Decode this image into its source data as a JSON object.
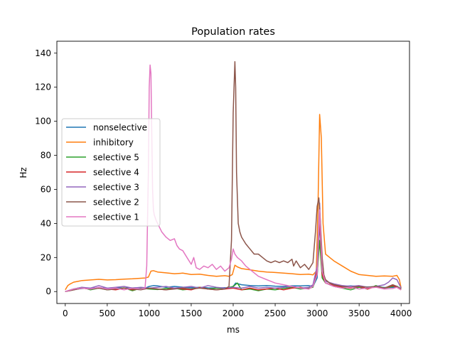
{
  "chart_data": {
    "type": "line",
    "title": "Population rates",
    "xlabel": "ms",
    "ylabel": "Hz",
    "xlim": [
      -100,
      4100
    ],
    "ylim": [
      -7,
      147
    ],
    "xticks": [
      0,
      500,
      1000,
      1500,
      2000,
      2500,
      3000,
      3500,
      4000
    ],
    "yticks": [
      0,
      20,
      40,
      60,
      80,
      100,
      120,
      140
    ],
    "grid": false,
    "legend_position": "center-left",
    "series": [
      {
        "name": "nonselective",
        "color": "#1f77b4",
        "x": [
          0,
          50,
          100,
          150,
          200,
          300,
          400,
          500,
          600,
          700,
          800,
          900,
          950,
          1000,
          1050,
          1100,
          1200,
          1300,
          1400,
          1500,
          1600,
          1700,
          1800,
          1900,
          1950,
          2000,
          2030,
          2060,
          2100,
          2200,
          2300,
          2400,
          2500,
          2600,
          2700,
          2800,
          2900,
          2950,
          3000,
          3030,
          3060,
          3100,
          3200,
          3300,
          3400,
          3500,
          3600,
          3700,
          3800,
          3900,
          3950,
          4000
        ],
        "y": [
          0,
          0.5,
          1.0,
          1.5,
          1.8,
          2.0,
          2.2,
          2.0,
          2.3,
          2.1,
          2.2,
          2.3,
          2.0,
          3.0,
          3.5,
          3.3,
          2.5,
          3.0,
          2.6,
          2.3,
          2.5,
          2.2,
          2.0,
          2.3,
          2.0,
          3.0,
          5.0,
          4.5,
          4.0,
          3.5,
          3.3,
          3.5,
          3.2,
          3.0,
          3.4,
          3.3,
          3.5,
          3.0,
          8,
          40,
          12,
          5,
          3.5,
          3.0,
          3.3,
          3.0,
          2.7,
          2.9,
          2.4,
          2.5,
          2.6,
          1.5
        ]
      },
      {
        "name": "inhibitory",
        "color": "#ff7f0e",
        "x": [
          0,
          30,
          60,
          100,
          150,
          200,
          300,
          400,
          500,
          600,
          700,
          800,
          900,
          950,
          990,
          1020,
          1050,
          1100,
          1200,
          1300,
          1400,
          1500,
          1600,
          1700,
          1800,
          1900,
          1950,
          1990,
          2020,
          2050,
          2100,
          2200,
          2300,
          2400,
          2500,
          2600,
          2700,
          2800,
          2900,
          2950,
          2990,
          3010,
          3030,
          3050,
          3070,
          3100,
          3150,
          3200,
          3300,
          3400,
          3500,
          3600,
          3700,
          3800,
          3900,
          3950,
          3980,
          4000
        ],
        "y": [
          1,
          3.5,
          4.5,
          5.5,
          6.0,
          6.5,
          6.8,
          7.2,
          6.8,
          7.0,
          7.3,
          7.5,
          7.8,
          8.0,
          8.5,
          12.0,
          12.3,
          11.5,
          11.0,
          10.5,
          10.8,
          10.0,
          10.2,
          9.5,
          9.0,
          9.3,
          9.0,
          10,
          15.5,
          14.5,
          13.5,
          12.8,
          12.0,
          11.5,
          11.2,
          10.8,
          10.5,
          10.0,
          10.2,
          9.8,
          12,
          50,
          104,
          90,
          40,
          22,
          20,
          18,
          15,
          12,
          10,
          9.5,
          9.0,
          9.2,
          9.0,
          9.5,
          7,
          2
        ]
      },
      {
        "name": "selective 5",
        "color": "#2ca02c",
        "x": [
          0,
          100,
          200,
          300,
          400,
          500,
          600,
          700,
          800,
          900,
          1000,
          1100,
          1200,
          1300,
          1400,
          1500,
          1600,
          1700,
          1800,
          1900,
          2000,
          2050,
          2100,
          2200,
          2300,
          2400,
          2500,
          2600,
          2700,
          2800,
          2900,
          2950,
          3000,
          3030,
          3060,
          3100,
          3200,
          3300,
          3400,
          3500,
          3600,
          3700,
          3800,
          3900,
          3950,
          4000
        ],
        "y": [
          0,
          1.5,
          2.5,
          1.0,
          2.0,
          1.0,
          1.5,
          2.2,
          0.5,
          2.0,
          1.5,
          1.2,
          1.8,
          2.0,
          1.0,
          1.5,
          2.5,
          1.5,
          2.0,
          1.8,
          3.0,
          5.0,
          1.0,
          1.5,
          0.5,
          1.5,
          1.0,
          1.8,
          2.5,
          1.5,
          2.0,
          2.5,
          10,
          30,
          8,
          5,
          3.0,
          2.0,
          1.0,
          2.5,
          1.5,
          3.5,
          2.0,
          3.0,
          3.2,
          1.5
        ]
      },
      {
        "name": "selective 4",
        "color": "#d62728",
        "x": [
          0,
          100,
          200,
          300,
          400,
          500,
          600,
          700,
          800,
          900,
          1000,
          1100,
          1200,
          1300,
          1400,
          1500,
          1600,
          1700,
          1800,
          1900,
          2000,
          2100,
          2200,
          2300,
          2400,
          2500,
          2600,
          2700,
          2800,
          2900,
          2950,
          3000,
          3030,
          3060,
          3100,
          3200,
          3300,
          3400,
          3500,
          3600,
          3700,
          3800,
          3900,
          3950,
          4000
        ],
        "y": [
          0,
          1.0,
          2.0,
          1.5,
          2.0,
          1.5,
          1.0,
          2.0,
          1.0,
          1.5,
          2.0,
          1.5,
          1.0,
          2.0,
          1.5,
          1.0,
          2.5,
          1.5,
          1.0,
          1.5,
          2.0,
          1.0,
          2.0,
          1.0,
          1.5,
          2.0,
          1.0,
          2.0,
          2.5,
          1.5,
          3.0,
          12,
          43,
          10,
          5,
          3.5,
          2.5,
          2.0,
          3.0,
          1.5,
          3.0,
          2.0,
          3.5,
          2.5,
          1.0
        ]
      },
      {
        "name": "selective 3",
        "color": "#9467bd",
        "x": [
          0,
          100,
          200,
          300,
          400,
          500,
          600,
          700,
          800,
          900,
          1000,
          1100,
          1200,
          1300,
          1400,
          1500,
          1600,
          1700,
          1800,
          1900,
          2000,
          2100,
          2200,
          2300,
          2400,
          2500,
          2600,
          2700,
          2800,
          2900,
          2950,
          3000,
          3030,
          3060,
          3100,
          3200,
          3300,
          3400,
          3500,
          3600,
          3700,
          3800,
          3850,
          3900,
          3950,
          4000
        ],
        "y": [
          0,
          1.5,
          2.5,
          2.0,
          3.5,
          2.0,
          2.5,
          3.0,
          2.0,
          2.5,
          2.0,
          2.5,
          3.0,
          2.0,
          2.5,
          3.0,
          2.0,
          3.5,
          2.5,
          2.0,
          2.5,
          2.0,
          3.0,
          2.0,
          2.5,
          2.0,
          2.5,
          3.0,
          2.0,
          2.5,
          4.0,
          15,
          52,
          12,
          6,
          4.5,
          3.5,
          3.0,
          3.5,
          2.5,
          3.0,
          4.0,
          5.5,
          8.0,
          7.0,
          2.0
        ]
      },
      {
        "name": "selective 2",
        "color": "#8c564b",
        "x": [
          0,
          100,
          200,
          300,
          400,
          500,
          600,
          700,
          800,
          900,
          1000,
          1100,
          1200,
          1300,
          1400,
          1500,
          1600,
          1700,
          1800,
          1900,
          1950,
          1980,
          2000,
          2020,
          2030,
          2040,
          2060,
          2080,
          2100,
          2150,
          2200,
          2250,
          2300,
          2350,
          2400,
          2450,
          2500,
          2550,
          2600,
          2650,
          2700,
          2720,
          2750,
          2800,
          2850,
          2900,
          2950,
          2980,
          3000,
          3020,
          3040,
          3060,
          3080,
          3100,
          3150,
          3200,
          3300,
          3400,
          3500,
          3600,
          3700,
          3800,
          3900,
          3950,
          4000
        ],
        "y": [
          0,
          1.0,
          2.0,
          1.5,
          2.0,
          1.0,
          1.5,
          2.0,
          1.5,
          1.0,
          2.0,
          1.5,
          1.0,
          1.5,
          2.0,
          1.5,
          2.0,
          1.5,
          1.0,
          1.5,
          3.0,
          30,
          105,
          135,
          120,
          70,
          40,
          35,
          32,
          28,
          25,
          22,
          22,
          20,
          18,
          17,
          18,
          17,
          18,
          17,
          19,
          15,
          18,
          14,
          16,
          13,
          17,
          35,
          50,
          55,
          40,
          20,
          10,
          7,
          5,
          4,
          3.0,
          2.5,
          3.0,
          2.5,
          3.0,
          2.0,
          4.0,
          3.0,
          1.5
        ]
      },
      {
        "name": "selective 1",
        "color": "#e377c2",
        "x": [
          0,
          100,
          200,
          300,
          400,
          500,
          600,
          700,
          800,
          900,
          950,
          970,
          990,
          1000,
          1010,
          1020,
          1030,
          1040,
          1050,
          1060,
          1080,
          1100,
          1150,
          1200,
          1250,
          1300,
          1330,
          1360,
          1400,
          1450,
          1500,
          1530,
          1560,
          1600,
          1650,
          1700,
          1750,
          1800,
          1850,
          1900,
          1950,
          1980,
          2000,
          2020,
          2050,
          2100,
          2150,
          2200,
          2300,
          2400,
          2500,
          2600,
          2700,
          2800,
          2900,
          2950,
          3000,
          3030,
          3060,
          3100,
          3200,
          3300,
          3400,
          3500,
          3600,
          3700,
          3800,
          3900,
          3950,
          4000
        ],
        "y": [
          0,
          1.5,
          2.0,
          1.5,
          2.5,
          1.5,
          2.0,
          1.0,
          2.0,
          1.5,
          2.0,
          15,
          70,
          120,
          133,
          128,
          95,
          60,
          48,
          45,
          42,
          40,
          35,
          32,
          30,
          31,
          27,
          25,
          24,
          20,
          16,
          20,
          14,
          13,
          15,
          14,
          16,
          13,
          15,
          12,
          14,
          19,
          25,
          22,
          20,
          18,
          15,
          13,
          9,
          7,
          5,
          4,
          3,
          2,
          1.5,
          3,
          10,
          48,
          12,
          5,
          3,
          2,
          2.5,
          1.5,
          2,
          2.5,
          1.5,
          1.8,
          2.5,
          1.0
        ]
      }
    ]
  }
}
